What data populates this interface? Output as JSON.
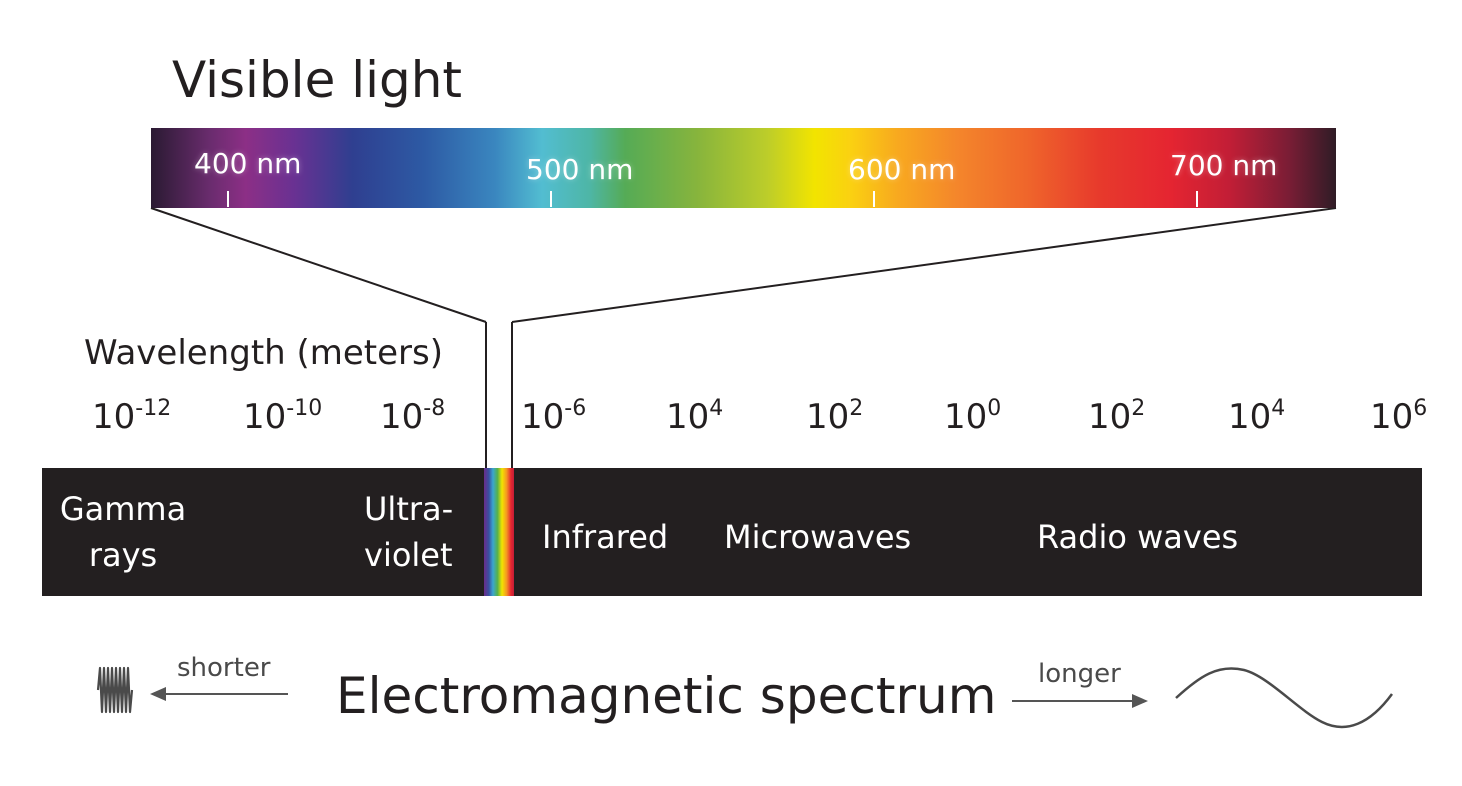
{
  "visible": {
    "title": "Visible light",
    "labels": [
      "400 nm",
      "500 nm",
      "600 nm",
      "700 nm"
    ]
  },
  "wavelength": {
    "title": "Wavelength (meters)",
    "ticks": [
      {
        "base": "10",
        "exp": "-12"
      },
      {
        "base": "10",
        "exp": "-10"
      },
      {
        "base": "10",
        "exp": "-8"
      },
      {
        "base": "10",
        "exp": "-6"
      },
      {
        "base": "10",
        "exp": "4"
      },
      {
        "base": "10",
        "exp": "2"
      },
      {
        "base": "10",
        "exp": "0"
      },
      {
        "base": "10",
        "exp": "2"
      },
      {
        "base": "10",
        "exp": "4"
      },
      {
        "base": "10",
        "exp": "6"
      }
    ]
  },
  "bands": {
    "gamma": {
      "line1": "Gamma",
      "line2": "rays"
    },
    "ultraviolet": {
      "line1": "Ultra-",
      "line2": "violet"
    },
    "infrared": "Infrared",
    "microwaves": "Microwaves",
    "radio": "Radio waves"
  },
  "bottom": {
    "title": "Electromagnetic spectrum",
    "shorter": "shorter",
    "longer": "longer"
  },
  "colors": {
    "bar": "#231f20",
    "text": "#231f20",
    "arrow": "#555555"
  },
  "icons": {
    "short_wave": "short-wave-icon",
    "long_wave": "long-wave-icon",
    "left_arrow": "arrow-left-icon",
    "right_arrow": "arrow-right-icon"
  }
}
